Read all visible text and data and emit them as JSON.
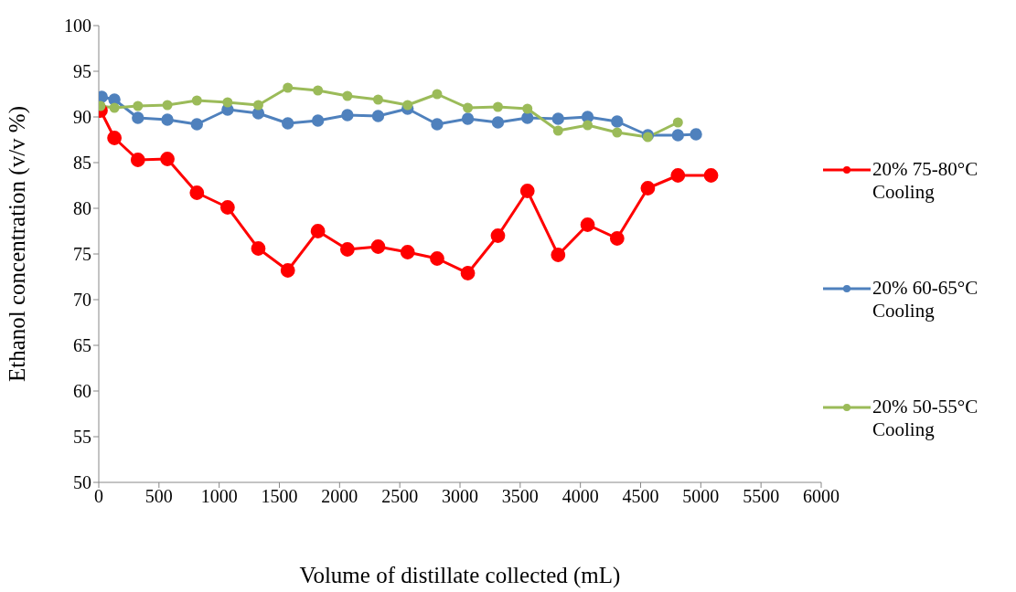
{
  "chart_data": {
    "type": "line",
    "xlabel": "Volume of distillate collected (mL)",
    "ylabel": "Ethanol concentration (v/v %)",
    "xlim": [
      0,
      6000
    ],
    "xticks": [
      0,
      500,
      1000,
      1500,
      2000,
      2500,
      3000,
      3500,
      4000,
      4500,
      5000,
      5500,
      6000
    ],
    "ylim": [
      50,
      100
    ],
    "yticks": [
      50,
      55,
      60,
      65,
      70,
      75,
      80,
      85,
      90,
      95,
      100
    ],
    "grid": false,
    "legend": "right",
    "marker": "circle",
    "line_style": "solid",
    "series": [
      {
        "name": "20% 75-80°C Cooling",
        "color": "#ff0000",
        "x": [
          15,
          130,
          325,
          570,
          815,
          1070,
          1325,
          1570,
          1820,
          2065,
          2320,
          2565,
          2810,
          3065,
          3315,
          3560,
          3815,
          4060,
          4305,
          4560,
          4810,
          5085
        ],
        "values": [
          90.7,
          87.7,
          85.3,
          85.4,
          81.7,
          80.1,
          75.6,
          73.2,
          77.5,
          75.5,
          75.8,
          75.2,
          74.5,
          72.9,
          77.0,
          81.9,
          74.9,
          78.2,
          76.7,
          82.2,
          83.6,
          83.6
        ]
      },
      {
        "name": "20% 60-65°C Cooling",
        "color": "#4f81bd",
        "x": [
          25,
          130,
          325,
          570,
          815,
          1070,
          1325,
          1570,
          1820,
          2065,
          2320,
          2565,
          2810,
          3065,
          3315,
          3560,
          3815,
          4060,
          4305,
          4560,
          4810,
          4960
        ],
        "values": [
          92.2,
          91.9,
          89.9,
          89.7,
          89.2,
          90.8,
          90.4,
          89.3,
          89.6,
          90.2,
          90.1,
          90.9,
          89.2,
          89.8,
          89.4,
          89.9,
          89.8,
          90.0,
          89.5,
          88.0,
          88.0,
          88.1
        ]
      },
      {
        "name": "20% 50-55°C Cooling",
        "color": "#9bbb59",
        "x": [
          15,
          130,
          325,
          570,
          815,
          1070,
          1325,
          1570,
          1820,
          2065,
          2320,
          2565,
          2810,
          3065,
          3315,
          3560,
          3815,
          4060,
          4305,
          4560,
          4810
        ],
        "values": [
          91.2,
          91.0,
          91.2,
          91.3,
          91.8,
          91.6,
          91.3,
          93.2,
          92.9,
          92.3,
          91.9,
          91.3,
          92.5,
          91.0,
          91.1,
          90.9,
          88.5,
          89.1,
          88.3,
          87.8,
          89.4
        ]
      }
    ]
  }
}
